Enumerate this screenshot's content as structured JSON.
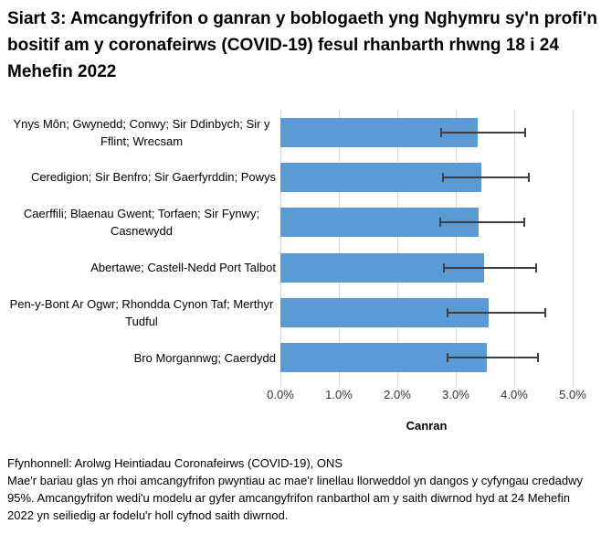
{
  "title": "Siart 3: Amcangyfrifon o ganran y boblogaeth yng Nghymru sy'n profi'n bositif am y coronafeirws (COVID-19) fesul rhanbarth rhwng 18 i 24 Mehefin 2022",
  "chart_data": {
    "type": "bar",
    "orientation": "horizontal",
    "title": "Siart 3: Amcangyfrifon o ganran y boblogaeth yng Nghymru sy'n profi'n bositif am y coronafeirws (COVID-19) fesul rhanbarth rhwng 18 i 24 Mehefin 2022",
    "categories": [
      "Ynys Môn; Gwynedd; Conwy; Sir Ddinbych; Sir y Fflint; Wrecsam",
      "Ceredigion; Sir Benfro; Sir Gaerfyrddin; Powys",
      "Caerffili; Blaenau Gwent; Torfaen; Sir Fynwy; Casnewydd",
      "Abertawe; Castell-Nedd Port Talbot",
      "Pen-y-Bont Ar Ogwr; Rhondda Cynon Taf; Merthyr Tudful",
      "Bro Morgannwg; Caerdydd"
    ],
    "values": [
      3.38,
      3.44,
      3.39,
      3.49,
      3.56,
      3.53
    ],
    "ci_low": [
      2.74,
      2.76,
      2.72,
      2.78,
      2.85,
      2.85
    ],
    "ci_high": [
      4.21,
      4.27,
      4.19,
      4.39,
      4.55,
      4.42
    ],
    "xlabel": "Canran",
    "ylabel": "",
    "xlim": [
      0,
      5
    ],
    "x_tick_labels": [
      "0.0%",
      "1.0%",
      "2.0%",
      "3.0%",
      "4.0%",
      "5.0%"
    ],
    "grid": true,
    "legend": "none",
    "bar_color": "#5b9bd5",
    "error_color": "#404040",
    "grid_color": "#d9d9d9"
  },
  "footer": {
    "source": "Ffynhonnell: Arolwg Heintiadau Coronafeirws (COVID-19), ONS",
    "note": "Mae'r bariau glas yn rhoi amcangyfrifon pwyntiau ac mae'r linellau llorweddol yn dangos y cyfyngau credadwy 95%. Amcangyfrifon wedi'u modelu ar gyfer amcangyfrifon ranbarthol am y saith diwrnod hyd at 24 Mehefin 2022 yn seiliedig ar fodelu'r holl cyfnod saith diwrnod."
  }
}
